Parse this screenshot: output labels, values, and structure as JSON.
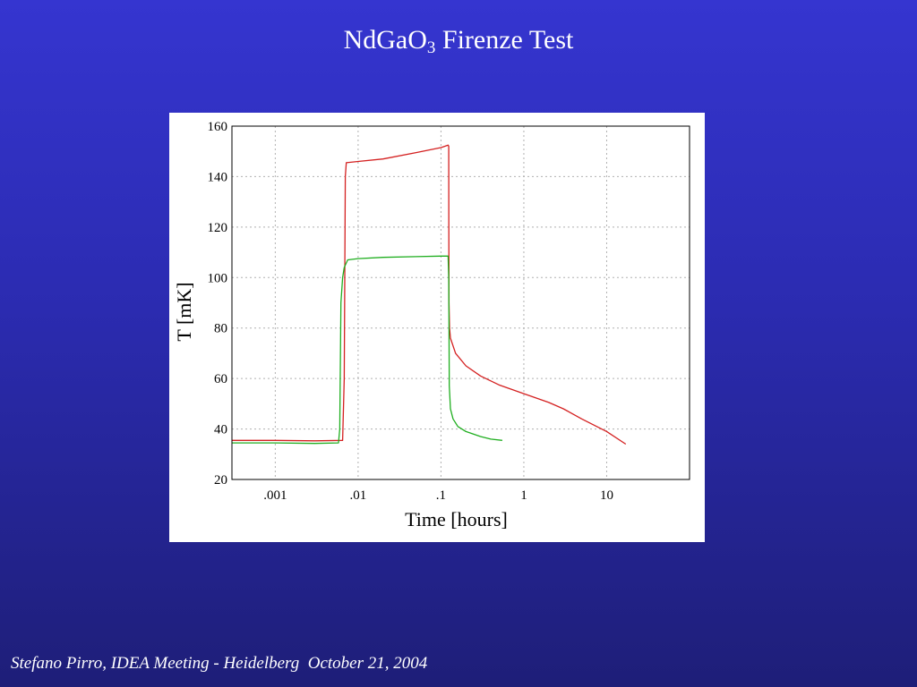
{
  "slide": {
    "title_main": "NdGaO",
    "title_sub": "3",
    "title_rest": " Firenze Test",
    "footer": "Stefano Pirro, IDEA Meeting - Heidelberg  October 21, 2004"
  },
  "colors": {
    "background_top": "#3535d0",
    "background_bottom": "#1e1e78",
    "series_red": "#d42020",
    "series_green": "#1fae1f",
    "grid": "#b0b0b0"
  },
  "chart_data": {
    "type": "line",
    "title": "",
    "xlabel": "Time  [hours]",
    "ylabel": "T  [mK]",
    "x_scale": "log",
    "xlim": [
      0.0003,
      100
    ],
    "ylim": [
      20,
      160
    ],
    "grid": true,
    "legend": "none",
    "x_ticks": [
      {
        "value": 0.001,
        "label": ".001"
      },
      {
        "value": 0.01,
        "label": ".01"
      },
      {
        "value": 0.1,
        "label": ".1"
      },
      {
        "value": 1,
        "label": "1"
      },
      {
        "value": 10,
        "label": "10"
      }
    ],
    "y_ticks": [
      {
        "value": 20,
        "label": "20"
      },
      {
        "value": 40,
        "label": "40"
      },
      {
        "value": 60,
        "label": "60"
      },
      {
        "value": 80,
        "label": "80"
      },
      {
        "value": 100,
        "label": "100"
      },
      {
        "value": 120,
        "label": "120"
      },
      {
        "value": 140,
        "label": "140"
      },
      {
        "value": 160,
        "label": "160"
      }
    ],
    "series": [
      {
        "color": "#d42020",
        "points": [
          [
            0.0003,
            35.5
          ],
          [
            0.001,
            35.5
          ],
          [
            0.003,
            35.3
          ],
          [
            0.0065,
            35.5
          ],
          [
            0.0068,
            60
          ],
          [
            0.0069,
            100
          ],
          [
            0.007,
            140
          ],
          [
            0.0072,
            145.5
          ],
          [
            0.01,
            146
          ],
          [
            0.02,
            147
          ],
          [
            0.05,
            149.5
          ],
          [
            0.1,
            151.5
          ],
          [
            0.122,
            152.5
          ],
          [
            0.124,
            152
          ],
          [
            0.1245,
            120
          ],
          [
            0.125,
            90
          ],
          [
            0.127,
            80
          ],
          [
            0.13,
            76
          ],
          [
            0.15,
            70
          ],
          [
            0.2,
            65
          ],
          [
            0.3,
            61
          ],
          [
            0.5,
            57.5
          ],
          [
            1,
            54
          ],
          [
            2,
            50.5
          ],
          [
            3,
            48
          ],
          [
            5,
            44
          ],
          [
            10,
            39
          ],
          [
            17,
            34
          ]
        ]
      },
      {
        "color": "#1fae1f",
        "points": [
          [
            0.0003,
            34.5
          ],
          [
            0.001,
            34.5
          ],
          [
            0.003,
            34.3
          ],
          [
            0.0058,
            34.5
          ],
          [
            0.006,
            40
          ],
          [
            0.0062,
            90
          ],
          [
            0.0065,
            100
          ],
          [
            0.0068,
            104
          ],
          [
            0.0075,
            107
          ],
          [
            0.01,
            107.5
          ],
          [
            0.02,
            108
          ],
          [
            0.05,
            108.3
          ],
          [
            0.1,
            108.5
          ],
          [
            0.122,
            108.5
          ],
          [
            0.124,
            100
          ],
          [
            0.125,
            80
          ],
          [
            0.126,
            57
          ],
          [
            0.128,
            53
          ],
          [
            0.13,
            48
          ],
          [
            0.14,
            44
          ],
          [
            0.16,
            41
          ],
          [
            0.2,
            39
          ],
          [
            0.3,
            37
          ],
          [
            0.4,
            36
          ],
          [
            0.55,
            35.5
          ]
        ]
      }
    ]
  }
}
